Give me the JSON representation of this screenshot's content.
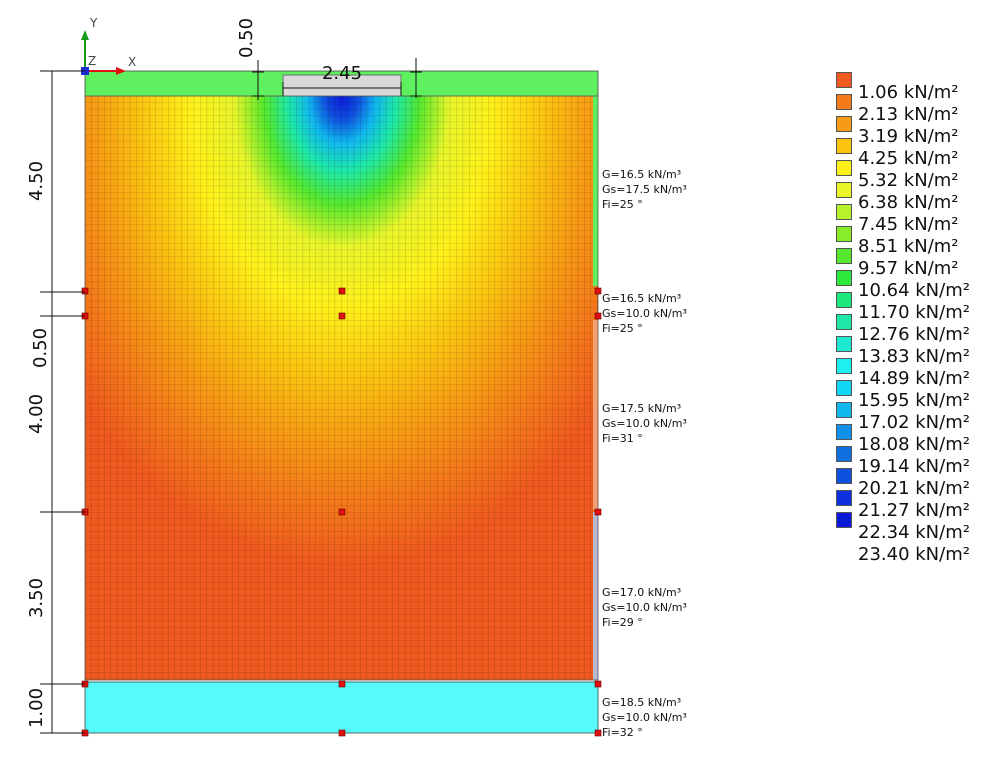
{
  "axes": {
    "y_label": "Y",
    "z_label": "Z",
    "x_label": "X"
  },
  "foundation": {
    "width_label": "2.45",
    "depth_label": "0.50"
  },
  "depth_dimensions": [
    "4.50",
    "0.50",
    "4.00",
    "3.50",
    "1.00"
  ],
  "layers": [
    {
      "G": "G=16.5 kN/m³",
      "Gs": "Gs=17.5 kN/m³",
      "Fi": "Fi=25 °"
    },
    {
      "G": "G=16.5 kN/m³",
      "Gs": "Gs=10.0 kN/m³",
      "Fi": "Fi=25 °"
    },
    {
      "G": "G=17.5 kN/m³",
      "Gs": "Gs=10.0 kN/m³",
      "Fi": "Fi=31 °"
    },
    {
      "G": "G=17.0 kN/m³",
      "Gs": "Gs=10.0 kN/m³",
      "Fi": "Fi=29 °"
    },
    {
      "G": "G=18.5 kN/m³",
      "Gs": "Gs=10.0 kN/m³",
      "Fi": "Fi=32 °"
    }
  ],
  "legend": {
    "items": [
      {
        "label": "1.06 kN/m²",
        "color": "#f05a1e"
      },
      {
        "label": "2.13 kN/m²",
        "color": "#f47a1a"
      },
      {
        "label": "3.19 kN/m²",
        "color": "#f79a14"
      },
      {
        "label": "4.25 kN/m²",
        "color": "#fbc410"
      },
      {
        "label": "5.32 kN/m²",
        "color": "#fff01a"
      },
      {
        "label": "6.38 kN/m²",
        "color": "#e8f52a"
      },
      {
        "label": "7.45 kN/m²",
        "color": "#b8f02a"
      },
      {
        "label": "8.51 kN/m²",
        "color": "#88ec2a"
      },
      {
        "label": "9.57 kN/m²",
        "color": "#55e82e"
      },
      {
        "label": "10.64 kN/m²",
        "color": "#2ee83a"
      },
      {
        "label": "11.70 kN/m²",
        "color": "#1ee87a"
      },
      {
        "label": "12.76 kN/m²",
        "color": "#1ee8a8"
      },
      {
        "label": "13.83 kN/m²",
        "color": "#1ee8d0"
      },
      {
        "label": "14.89 kN/m²",
        "color": "#1ef0f0"
      },
      {
        "label": "15.95 kN/m²",
        "color": "#10d8f4"
      },
      {
        "label": "17.02 kN/m²",
        "color": "#10b8f0"
      },
      {
        "label": "18.08 kN/m²",
        "color": "#1090e8"
      },
      {
        "label": "19.14 kN/m²",
        "color": "#1070e0"
      },
      {
        "label": "20.21 kN/m²",
        "color": "#1050e0"
      },
      {
        "label": "21.27 kN/m²",
        "color": "#1030e0"
      },
      {
        "label": "22.34 kN/m²",
        "color": "#0a18d8"
      }
    ],
    "max_label": "23.40 kN/m²"
  }
}
